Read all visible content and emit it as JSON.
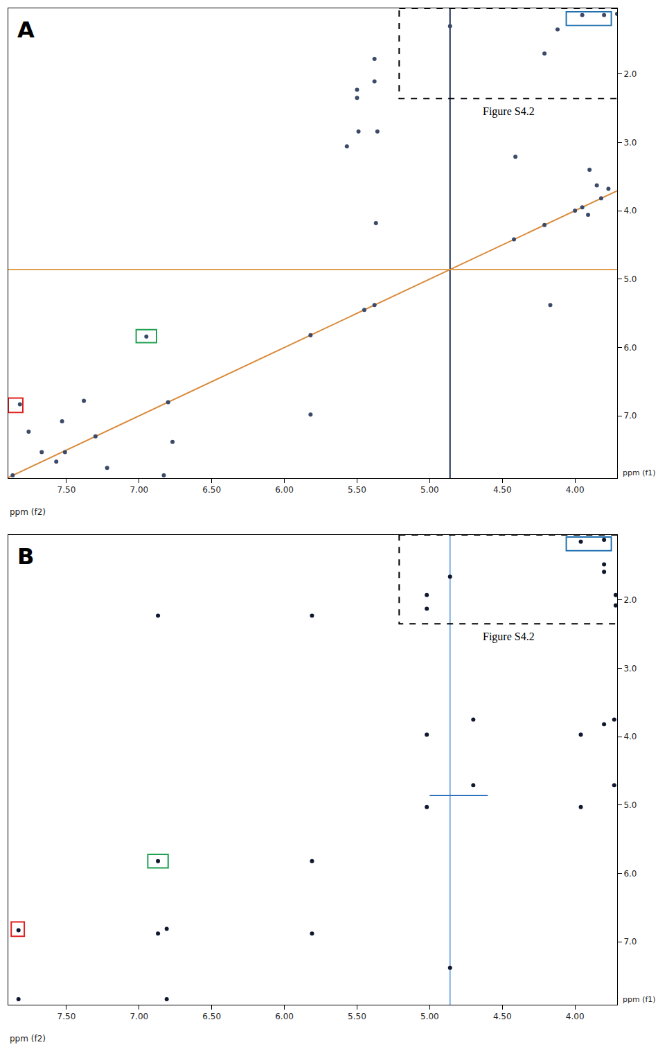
{
  "chart_data": [
    {
      "type": "scatter",
      "title": "A",
      "x_label": "ppm (f2)",
      "y_label": "ppm (f1)",
      "xlim": [
        7.9,
        3.71
      ],
      "ylim": [
        7.91,
        1.04
      ],
      "xticks": [
        {
          "value": 7.5,
          "label": "7.50"
        },
        {
          "value": 7.0,
          "label": "7.00"
        },
        {
          "value": 6.5,
          "label": "6.50"
        },
        {
          "value": 6.0,
          "label": "6.00"
        },
        {
          "value": 5.5,
          "label": "5.50"
        },
        {
          "value": 5.0,
          "label": "5.00"
        },
        {
          "value": 4.5,
          "label": "4.50"
        },
        {
          "value": 4.0,
          "label": "4.00"
        }
      ],
      "yticks": [
        {
          "value": 2,
          "label": "2.0"
        },
        {
          "value": 3,
          "label": "3.0"
        },
        {
          "value": 4,
          "label": "4.0"
        },
        {
          "value": 5,
          "label": "5.0"
        },
        {
          "value": 6,
          "label": "6.0"
        },
        {
          "value": 7,
          "label": "7.0"
        }
      ],
      "grid": false,
      "series": [
        {
          "type": "line",
          "color": "#d98a3a",
          "line_style": "solid",
          "x": [
            7.9,
            3.71
          ],
          "y": [
            7.9,
            3.71
          ]
        },
        {
          "type": "line",
          "color": "#1a2a50",
          "line_style": "solid",
          "x": [
            4.86,
            4.86
          ],
          "y": [
            7.91,
            1.04
          ]
        },
        {
          "type": "line",
          "color": "#e0a050",
          "line_style": "solid",
          "x": [
            7.9,
            3.71
          ],
          "y": [
            4.86,
            4.86
          ]
        },
        {
          "type": "scatter",
          "color": "#3a4a68",
          "marker": "circle",
          "x": [
            3.95,
            3.8,
            3.71,
            4.86,
            4.12,
            4.21,
            5.38,
            5.5,
            5.38,
            5.5,
            5.36,
            5.49,
            5.57,
            4.41,
            3.9,
            3.85,
            3.77,
            5.37,
            3.91,
            4.17,
            7.38,
            7.53,
            6.77,
            5.82,
            7.82,
            6.95,
            7.76,
            7.22,
            6.83,
            7.67,
            7.51,
            7.57,
            7.87,
            7.3,
            6.8,
            5.82,
            5.45,
            5.38,
            4.42,
            4.21,
            4.0,
            3.95,
            3.82
          ],
          "y": [
            1.14,
            1.14,
            1.12,
            1.3,
            1.35,
            1.7,
            1.78,
            2.23,
            2.11,
            2.35,
            2.84,
            2.84,
            3.06,
            3.21,
            3.4,
            3.63,
            3.68,
            4.18,
            4.06,
            5.38,
            6.78,
            7.08,
            7.38,
            6.98,
            6.83,
            5.84,
            7.23,
            7.76,
            7.87,
            7.53,
            7.53,
            7.67,
            7.87,
            7.3,
            6.8,
            5.82,
            5.45,
            5.38,
            4.42,
            4.21,
            4.0,
            3.95,
            3.82
          ]
        }
      ],
      "boxes": [
        {
          "color": "#e02020",
          "line_style": "solid",
          "x": [
            7.9,
            7.8
          ],
          "y": [
            6.74,
            6.95
          ]
        },
        {
          "color": "#20a050",
          "line_style": "solid",
          "x": [
            7.02,
            6.88
          ],
          "y": [
            5.74,
            5.93
          ]
        },
        {
          "color": "#2070b0",
          "line_style": "solid",
          "x": [
            4.06,
            3.75
          ],
          "y": [
            1.09,
            1.29
          ]
        },
        {
          "color": "#000000",
          "line_style": "dashed",
          "x": [
            5.21,
            3.7
          ],
          "y": [
            1.04,
            2.36
          ],
          "label": "Figure S4.2"
        }
      ]
    },
    {
      "type": "scatter",
      "title": "B",
      "x_label": "ppm (f2)",
      "y_label": "ppm (f1)",
      "xlim": [
        7.9,
        3.71
      ],
      "ylim": [
        7.92,
        1.05
      ],
      "xticks": [
        {
          "value": 7.5,
          "label": "7.50"
        },
        {
          "value": 7.0,
          "label": "7.00"
        },
        {
          "value": 6.5,
          "label": "6.50"
        },
        {
          "value": 6.0,
          "label": "6.00"
        },
        {
          "value": 5.5,
          "label": "5.50"
        },
        {
          "value": 5.0,
          "label": "5.00"
        },
        {
          "value": 4.5,
          "label": "4.50"
        },
        {
          "value": 4.0,
          "label": "4.00"
        }
      ],
      "yticks": [
        {
          "value": 2,
          "label": "2.0"
        },
        {
          "value": 3,
          "label": "3.0"
        },
        {
          "value": 4,
          "label": "4.0"
        },
        {
          "value": 5,
          "label": "5.0"
        },
        {
          "value": 6,
          "label": "6.0"
        },
        {
          "value": 7,
          "label": "7.0"
        }
      ],
      "grid": false,
      "series": [
        {
          "type": "line",
          "color": "#7fb0e0",
          "line_style": "solid",
          "x": [
            4.86,
            4.86
          ],
          "y": [
            7.92,
            1.05
          ]
        },
        {
          "type": "line",
          "color": "#3070c0",
          "line_style": "solid",
          "x": [
            5.0,
            4.6
          ],
          "y": [
            4.86,
            4.86
          ]
        },
        {
          "type": "scatter",
          "color": "#101830",
          "marker": "circle",
          "x": [
            3.96,
            3.8,
            3.8,
            3.8,
            3.72,
            3.72,
            5.02,
            5.02,
            4.86,
            6.87,
            5.81,
            5.02,
            3.96,
            3.8,
            3.73,
            4.7,
            4.7,
            3.73,
            5.02,
            3.96,
            6.87,
            5.81,
            7.83,
            6.87,
            6.81,
            5.81,
            4.86,
            7.83,
            6.81
          ],
          "y": [
            1.15,
            1.12,
            1.48,
            1.59,
            1.93,
            2.08,
            1.93,
            2.13,
            1.66,
            2.23,
            2.23,
            3.97,
            3.97,
            3.82,
            3.75,
            3.75,
            4.71,
            4.71,
            5.03,
            5.03,
            5.82,
            5.82,
            6.83,
            6.88,
            6.81,
            6.88,
            7.38,
            7.84,
            7.84
          ]
        }
      ],
      "boxes": [
        {
          "color": "#e02020",
          "line_style": "solid",
          "x": [
            7.88,
            7.79
          ],
          "y": [
            6.71,
            6.92
          ]
        },
        {
          "color": "#20a050",
          "line_style": "solid",
          "x": [
            6.94,
            6.8
          ],
          "y": [
            5.72,
            5.92
          ]
        },
        {
          "color": "#2070b0",
          "line_style": "solid",
          "x": [
            4.06,
            3.75
          ],
          "y": [
            1.08,
            1.28
          ]
        },
        {
          "color": "#000000",
          "line_style": "dashed",
          "x": [
            5.21,
            3.7
          ],
          "y": [
            1.05,
            2.35
          ],
          "label": "Figure S4.2"
        }
      ]
    }
  ]
}
